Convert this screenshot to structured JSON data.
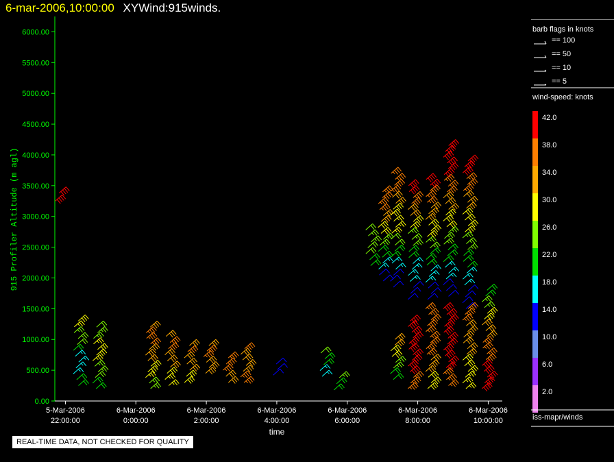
{
  "title": {
    "date": "6-mar-2006,10:00:00",
    "name": "XYWind:915winds."
  },
  "quality_note": "REAL-TIME DATA, NOT CHECKED FOR QUALITY",
  "legend": {
    "barb_title": "barb flags in knots",
    "barb_items": [
      "== 100",
      "== 50",
      "== 10",
      "== 5"
    ],
    "speed_title": "wind-speed: knots",
    "speed_bins": [
      {
        "label": "42.0",
        "color": "#ff0000"
      },
      {
        "label": "38.0",
        "color": "#ff7f00"
      },
      {
        "label": "34.0",
        "color": "#ffaa00"
      },
      {
        "label": "30.0",
        "color": "#ffff00"
      },
      {
        "label": "26.0",
        "color": "#80ff00"
      },
      {
        "label": "22.0",
        "color": "#00e000"
      },
      {
        "label": "18.0",
        "color": "#00ffff"
      },
      {
        "label": "14.0",
        "color": "#0000ff"
      },
      {
        "label": "10.0",
        "color": "#6a8fe8"
      },
      {
        "label": "6.0",
        "color": "#9b30ff"
      },
      {
        "label": "2.0",
        "color": "#ee82ee"
      }
    ],
    "footer": "iss-mapr/winds"
  },
  "chart_data": {
    "type": "scatter",
    "ylabel": "915 Profiler Altitude (m agl)",
    "xlabel": "time",
    "ylim": [
      0,
      6250
    ],
    "xlim": [
      -2.3,
      10.4
    ],
    "y_ticks": [
      "0.00",
      "500.00",
      "1000.00",
      "1500.00",
      "2000.00",
      "2500.00",
      "3000.00",
      "3500.00",
      "4000.00",
      "4500.00",
      "5000.00",
      "5500.00",
      "6000.00"
    ],
    "x_ticks": [
      {
        "hour": -2,
        "l1": "5-Mar-2006",
        "l2": "22:00:00"
      },
      {
        "hour": 0,
        "l1": "6-Mar-2006",
        "l2": "0:00:00"
      },
      {
        "hour": 2,
        "l1": "6-Mar-2006",
        "l2": "2:00:00"
      },
      {
        "hour": 4,
        "l1": "6-Mar-2006",
        "l2": "4:00:00"
      },
      {
        "hour": 6,
        "l1": "6-Mar-2006",
        "l2": "6:00:00"
      },
      {
        "hour": 8,
        "l1": "6-Mar-2006",
        "l2": "8:00:00"
      },
      {
        "hour": 10,
        "l1": "6-Mar-2006",
        "l2": "10:00:00"
      }
    ],
    "profiles": [
      {
        "t": -2.25,
        "z0": 3250,
        "z1": 3380,
        "speeds": [
          42
        ]
      },
      {
        "t": -1.7,
        "z0": 250,
        "z1": 1300,
        "speeds": [
          22,
          18,
          16,
          18,
          22,
          24,
          26,
          28,
          30
        ]
      },
      {
        "t": -1.15,
        "z0": 200,
        "z1": 1200,
        "speeds": [
          22,
          24,
          26,
          28,
          30,
          28,
          26,
          24
        ]
      },
      {
        "t": 0.35,
        "z0": 200,
        "z1": 1200,
        "speeds": [
          26,
          28,
          30,
          32,
          34,
          36,
          36,
          34
        ]
      },
      {
        "t": 0.9,
        "z0": 250,
        "z1": 1050,
        "speeds": [
          28,
          30,
          32,
          34,
          36,
          34
        ]
      },
      {
        "t": 1.45,
        "z0": 300,
        "z1": 900,
        "speeds": [
          30,
          32,
          34,
          36,
          34
        ]
      },
      {
        "t": 2.0,
        "z0": 450,
        "z1": 900,
        "speeds": [
          32,
          34,
          36,
          34
        ]
      },
      {
        "t": 2.55,
        "z0": 300,
        "z1": 700,
        "speeds": [
          34,
          36,
          38
        ]
      },
      {
        "t": 3.05,
        "z0": 300,
        "z1": 850,
        "speeds": [
          36,
          34,
          32,
          34,
          36
        ]
      },
      {
        "t": 3.95,
        "z0": 420,
        "z1": 600,
        "speeds": [
          14,
          14
        ]
      },
      {
        "t": 5.3,
        "z0": 400,
        "z1": 780,
        "speeds": [
          16,
          22,
          24
        ]
      },
      {
        "t": 5.7,
        "z0": 180,
        "z1": 380,
        "speeds": [
          22,
          26
        ]
      },
      {
        "t": 6.6,
        "z0": 2200,
        "z1": 2780,
        "speeds": [
          20,
          24,
          26,
          24
        ]
      },
      {
        "t": 6.95,
        "z0": 1950,
        "z1": 3400,
        "speeds": [
          14,
          18,
          22,
          26,
          30,
          34,
          36,
          38
        ]
      },
      {
        "t": 7.3,
        "z0": 1850,
        "z1": 3700,
        "speeds": [
          14,
          18,
          20,
          24,
          28,
          30,
          34,
          36,
          38
        ]
      },
      {
        "t": 7.3,
        "z0": 350,
        "z1": 1000,
        "speeds": [
          22,
          26,
          30,
          32
        ]
      },
      {
        "t": 7.8,
        "z0": 1650,
        "z1": 3500,
        "speeds": [
          14,
          16,
          18,
          22,
          26,
          30,
          34,
          38,
          42
        ]
      },
      {
        "t": 7.8,
        "z0": 200,
        "z1": 1300,
        "speeds": [
          38,
          40,
          42,
          42,
          40
        ]
      },
      {
        "t": 8.3,
        "z0": 1650,
        "z1": 3600,
        "speeds": [
          14,
          18,
          22,
          26,
          30,
          34,
          38,
          42
        ]
      },
      {
        "t": 8.3,
        "z0": 200,
        "z1": 1500,
        "speeds": [
          30,
          34,
          38,
          38,
          36
        ]
      },
      {
        "t": 8.8,
        "z0": 1700,
        "z1": 4150,
        "speeds": [
          14,
          18,
          22,
          26,
          30,
          34,
          38,
          42,
          42
        ]
      },
      {
        "t": 8.8,
        "z0": 250,
        "z1": 1500,
        "speeds": [
          36,
          40,
          42,
          42,
          40
        ]
      },
      {
        "t": 9.35,
        "z0": 1500,
        "z1": 3900,
        "speeds": [
          14,
          18,
          22,
          26,
          30,
          34,
          38,
          42
        ]
      },
      {
        "t": 9.35,
        "z0": 200,
        "z1": 1500,
        "speeds": [
          28,
          30,
          32,
          34,
          36
        ]
      },
      {
        "t": 9.9,
        "z0": 200,
        "z1": 1800,
        "speeds": [
          42,
          40,
          38,
          36,
          34,
          30,
          26,
          20
        ]
      }
    ]
  }
}
